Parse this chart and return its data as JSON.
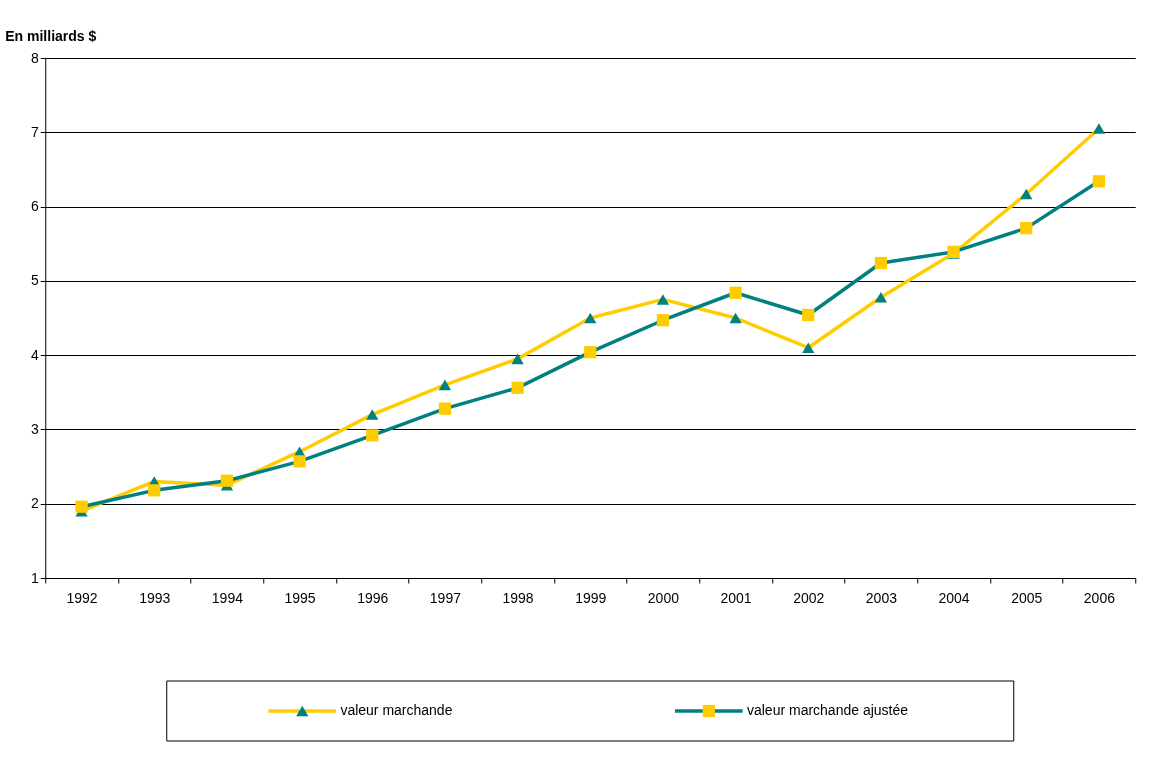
{
  "chart_data": {
    "type": "line",
    "ylabel": "En milliards $",
    "categories": [
      "1992",
      "1993",
      "1994",
      "1995",
      "1996",
      "1997",
      "1998",
      "1999",
      "2000",
      "2001",
      "2002",
      "2003",
      "2004",
      "2005",
      "2006"
    ],
    "series": [
      {
        "name": "valeur marchande",
        "color": "#ffcc00",
        "marker": "triangle",
        "values": [
          1.9,
          2.3,
          2.25,
          2.7,
          3.2,
          3.6,
          3.95,
          4.5,
          4.75,
          4.5,
          4.1,
          4.78,
          5.37,
          6.17,
          7.05
        ]
      },
      {
        "name": "valeur marchande ajustée",
        "color": "#008080",
        "marker": "square",
        "values": [
          1.96,
          2.18,
          2.31,
          2.57,
          2.92,
          3.28,
          3.56,
          4.04,
          4.47,
          4.84,
          4.54,
          5.24,
          5.39,
          5.71,
          6.34
        ]
      }
    ],
    "ylim": [
      1,
      8
    ],
    "yticks": [
      1,
      2,
      3,
      4,
      5,
      6,
      7,
      8
    ],
    "grid": "y",
    "legend": "bottom",
    "line_style": "solid"
  }
}
